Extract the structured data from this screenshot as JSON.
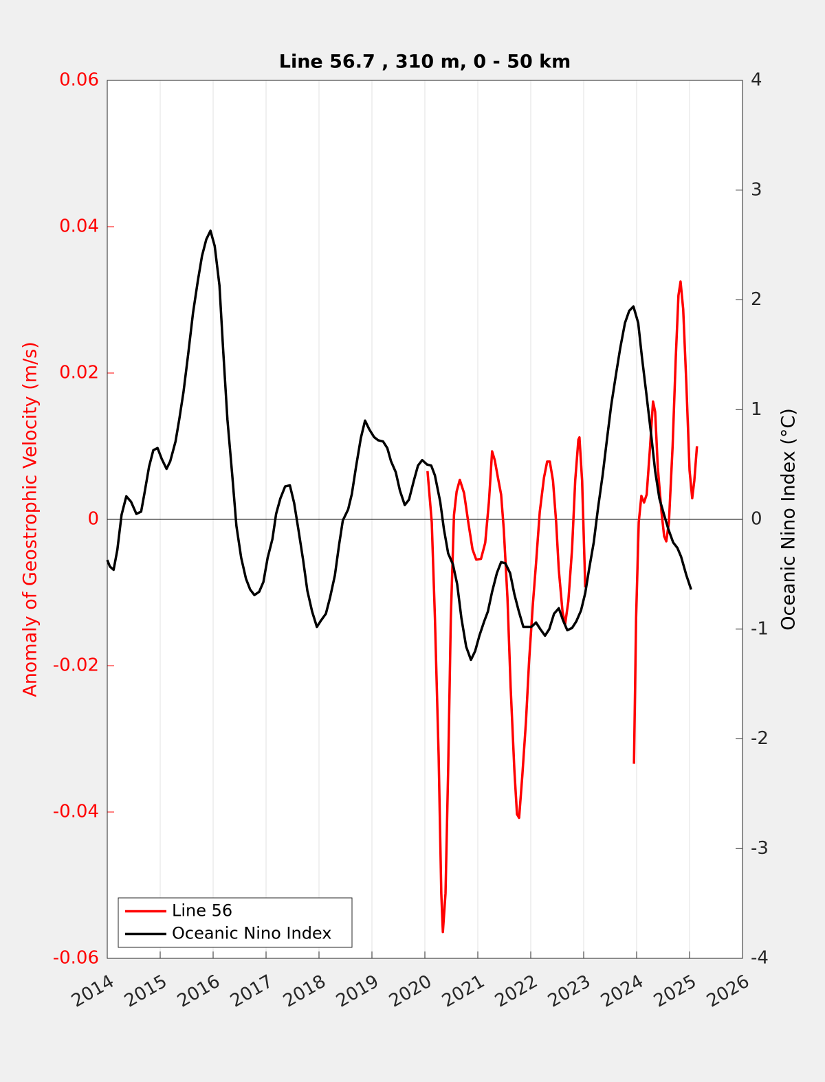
{
  "chart_data": {
    "type": "line",
    "title": "Line 56.7 , 310 m, 0 - 50 km",
    "y_label": "Anomaly of Geostrophic Velocity (m/s)",
    "y2_label": "Oceanic Nino Index (°C)",
    "xlim": [
      2014,
      2026
    ],
    "xticks": [
      2014,
      2015,
      2016,
      2017,
      2018,
      2019,
      2020,
      2021,
      2022,
      2023,
      2024,
      2025,
      2026
    ],
    "ylim": [
      -0.06,
      0.06
    ],
    "yticks": [
      -0.06,
      -0.04,
      -0.02,
      0,
      0.02,
      0.04,
      0.06
    ],
    "y2lim": [
      -4,
      4
    ],
    "y2ticks": [
      -4,
      -3,
      -2,
      -1,
      0,
      1,
      2,
      3,
      4
    ],
    "grid": true,
    "legend": "lower left",
    "series": [
      {
        "name": "Line 56",
        "color": "#ff0000",
        "axis": "y",
        "x": [
          2020.05,
          2020.13,
          2020.19,
          2020.26,
          2020.31,
          2020.34,
          2020.39,
          2020.44,
          2020.49,
          2020.55,
          2020.6,
          2020.66,
          2020.74,
          2020.82,
          2020.9,
          2020.97,
          2021.06,
          2021.14,
          2021.21,
          2021.27,
          2021.32,
          2021.38,
          2021.44,
          2021.49,
          2021.56,
          2021.62,
          2021.69,
          2021.74,
          2021.78,
          2021.84,
          2021.91,
          2021.97,
          2022.04,
          2022.1,
          2022.17,
          2022.25,
          2022.31,
          2022.36,
          2022.42,
          2022.48,
          2022.53,
          2022.6,
          2022.65,
          2022.71,
          2022.78,
          2022.84,
          2022.9,
          2022.92,
          2022.97,
          2023.03,
          2023.5,
          2023.95,
          2023.99,
          2024.04,
          2024.09,
          2024.14,
          2024.19,
          2024.25,
          2024.31,
          2024.35,
          2024.4,
          2024.47,
          2024.52,
          2024.56,
          2024.61,
          2024.68,
          2024.74,
          2024.79,
          2024.83,
          2024.88,
          2024.94,
          2025.0,
          2025.05,
          2025.09,
          2025.14
        ],
        "values": [
          0.0066,
          -0.0004,
          -0.0135,
          -0.0323,
          -0.0511,
          -0.0564,
          -0.0511,
          -0.0342,
          -0.0135,
          0.0006,
          0.0038,
          0.0054,
          0.0036,
          -0.0004,
          -0.0041,
          -0.0055,
          -0.0054,
          -0.0032,
          0.0024,
          0.0093,
          0.0081,
          0.0057,
          0.0034,
          -0.0013,
          -0.0107,
          -0.0229,
          -0.0342,
          -0.0403,
          -0.0408,
          -0.0351,
          -0.0276,
          -0.0192,
          -0.0116,
          -0.006,
          0.001,
          0.0057,
          0.0079,
          0.0079,
          0.0053,
          -0.0004,
          -0.0069,
          -0.0126,
          -0.0143,
          -0.0112,
          -0.0041,
          0.0053,
          0.0109,
          0.0112,
          0.0053,
          -0.0093,
          null,
          -0.0334,
          -0.0135,
          -0.0004,
          0.0032,
          0.0023,
          0.0034,
          0.0095,
          0.0161,
          0.0147,
          0.0071,
          0.001,
          -0.0023,
          -0.003,
          -0.0004,
          0.01,
          0.0222,
          0.0306,
          0.0325,
          0.0287,
          0.0184,
          0.0067,
          0.0029,
          0.0053,
          0.01
        ]
      },
      {
        "name": "Oceanic Nino Index",
        "color": "#000000",
        "axis": "y2",
        "x": [
          2014.0,
          2014.05,
          2014.12,
          2014.19,
          2014.27,
          2014.36,
          2014.45,
          2014.55,
          2014.64,
          2014.7,
          2014.79,
          2014.87,
          2014.95,
          2015.03,
          2015.12,
          2015.19,
          2015.29,
          2015.36,
          2015.44,
          2015.53,
          2015.62,
          2015.71,
          2015.79,
          2015.87,
          2015.95,
          2016.03,
          2016.12,
          2016.19,
          2016.27,
          2016.36,
          2016.44,
          2016.53,
          2016.62,
          2016.7,
          2016.78,
          2016.87,
          2016.95,
          2017.03,
          2017.12,
          2017.19,
          2017.27,
          2017.36,
          2017.45,
          2017.53,
          2017.61,
          2017.7,
          2017.78,
          2017.87,
          2017.96,
          2018.04,
          2018.13,
          2018.21,
          2018.3,
          2018.38,
          2018.45,
          2018.55,
          2018.62,
          2018.7,
          2018.79,
          2018.87,
          2018.95,
          2019.04,
          2019.12,
          2019.21,
          2019.29,
          2019.36,
          2019.45,
          2019.53,
          2019.62,
          2019.7,
          2019.79,
          2019.87,
          2019.95,
          2020.04,
          2020.12,
          2020.19,
          2020.29,
          2020.36,
          2020.44,
          2020.53,
          2020.61,
          2020.69,
          2020.78,
          2020.87,
          2020.95,
          2021.03,
          2021.12,
          2021.19,
          2021.27,
          2021.36,
          2021.44,
          2021.52,
          2021.61,
          2021.69,
          2021.77,
          2021.86,
          2021.94,
          2022.01,
          2022.1,
          2022.18,
          2022.27,
          2022.35,
          2022.44,
          2022.53,
          2022.61,
          2022.69,
          2022.78,
          2022.86,
          2022.95,
          2023.03,
          2023.1,
          2023.19,
          2023.27,
          2023.36,
          2023.44,
          2023.52,
          2023.61,
          2023.69,
          2023.78,
          2023.86,
          2023.94,
          2024.03,
          2024.1,
          2024.18,
          2024.27,
          2024.35,
          2024.43,
          2024.52,
          2024.6,
          2024.69,
          2024.77,
          2024.84,
          2024.94,
          2025.03
        ],
        "values": [
          -0.37,
          -0.43,
          -0.46,
          -0.28,
          0.04,
          0.21,
          0.16,
          0.05,
          0.07,
          0.23,
          0.48,
          0.63,
          0.65,
          0.55,
          0.46,
          0.53,
          0.71,
          0.91,
          1.16,
          1.51,
          1.88,
          2.17,
          2.4,
          2.55,
          2.63,
          2.49,
          2.13,
          1.54,
          0.91,
          0.41,
          -0.06,
          -0.35,
          -0.54,
          -0.64,
          -0.69,
          -0.66,
          -0.57,
          -0.35,
          -0.18,
          0.05,
          0.19,
          0.3,
          0.31,
          0.15,
          -0.09,
          -0.37,
          -0.65,
          -0.84,
          -0.98,
          -0.92,
          -0.86,
          -0.71,
          -0.51,
          -0.23,
          -0.01,
          0.09,
          0.23,
          0.48,
          0.74,
          0.9,
          0.82,
          0.75,
          0.72,
          0.71,
          0.65,
          0.53,
          0.43,
          0.26,
          0.13,
          0.18,
          0.35,
          0.49,
          0.54,
          0.5,
          0.49,
          0.4,
          0.16,
          -0.09,
          -0.31,
          -0.41,
          -0.59,
          -0.9,
          -1.16,
          -1.28,
          -1.2,
          -1.06,
          -0.93,
          -0.84,
          -0.66,
          -0.49,
          -0.39,
          -0.4,
          -0.49,
          -0.68,
          -0.83,
          -0.98,
          -0.98,
          -0.98,
          -0.94,
          -1.0,
          -1.06,
          -1.0,
          -0.86,
          -0.81,
          -0.92,
          -1.01,
          -0.99,
          -0.93,
          -0.83,
          -0.67,
          -0.46,
          -0.21,
          0.1,
          0.41,
          0.73,
          1.04,
          1.32,
          1.56,
          1.79,
          1.9,
          1.94,
          1.79,
          1.48,
          1.16,
          0.79,
          0.44,
          0.19,
          0.04,
          -0.09,
          -0.21,
          -0.26,
          -0.34,
          -0.51,
          -0.64
        ]
      }
    ]
  }
}
